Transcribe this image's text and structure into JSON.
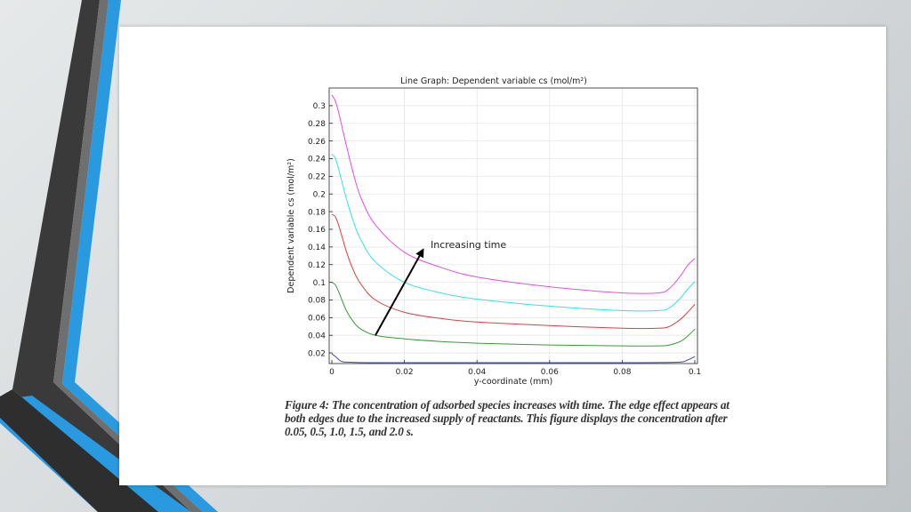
{
  "slide": {
    "caption": "Figure 4: The concentration of adsorbed species increases with time. The edge effect appears at both edges due to the increased supply of reactants. This figure displays the concentration after 0.05, 0.5, 1.0, 1.5, and 2.0 s.",
    "accent_color": "#2a9ae0",
    "dark_stripe_color": "#3a3a3a"
  },
  "chart_data": {
    "type": "line",
    "title": "Line Graph: Dependent variable cs (mol/m²)",
    "xlabel": "y-coordinate (mm)",
    "ylabel": "Dependent variable cs (mol/m²)",
    "xlim": [
      0,
      0.1
    ],
    "ylim": [
      0.008,
      0.32
    ],
    "x_ticks": [
      "0",
      "0.02",
      "0.04",
      "0.06",
      "0.08",
      "0.1"
    ],
    "y_ticks": [
      "0.02",
      "0.04",
      "0.06",
      "0.08",
      "0.1",
      "0.12",
      "0.14",
      "0.16",
      "0.18",
      "0.2",
      "0.22",
      "0.24",
      "0.26",
      "0.28",
      "0.3"
    ],
    "grid": true,
    "annotation": "Increasing time",
    "series": [
      {
        "color": "#3b4cc0",
        "x": [
          0,
          0.001,
          0.002,
          0.003,
          0.005,
          0.01,
          0.02,
          0.05,
          0.08,
          0.095,
          0.098,
          0.1
        ],
        "y": [
          0.019,
          0.016,
          0.012,
          0.01,
          0.0095,
          0.009,
          0.009,
          0.009,
          0.009,
          0.0095,
          0.012,
          0.016
        ]
      },
      {
        "color": "#3a9a3a",
        "x": [
          0,
          0.001,
          0.002,
          0.004,
          0.006,
          0.008,
          0.012,
          0.02,
          0.03,
          0.04,
          0.06,
          0.08,
          0.09,
          0.093,
          0.096,
          0.098,
          0.1
        ],
        "y": [
          0.1,
          0.097,
          0.088,
          0.068,
          0.055,
          0.047,
          0.04,
          0.036,
          0.033,
          0.031,
          0.029,
          0.028,
          0.028,
          0.029,
          0.033,
          0.039,
          0.047
        ]
      },
      {
        "color": "#d94040",
        "x": [
          0,
          0.001,
          0.002,
          0.004,
          0.006,
          0.008,
          0.012,
          0.02,
          0.03,
          0.04,
          0.06,
          0.08,
          0.09,
          0.093,
          0.096,
          0.098,
          0.1
        ],
        "y": [
          0.177,
          0.174,
          0.163,
          0.135,
          0.113,
          0.098,
          0.08,
          0.066,
          0.059,
          0.055,
          0.051,
          0.048,
          0.048,
          0.05,
          0.058,
          0.066,
          0.075
        ]
      },
      {
        "color": "#35e0e8",
        "x": [
          0,
          0.001,
          0.002,
          0.004,
          0.006,
          0.008,
          0.012,
          0.02,
          0.03,
          0.04,
          0.06,
          0.08,
          0.09,
          0.093,
          0.096,
          0.098,
          0.1
        ],
        "y": [
          0.245,
          0.24,
          0.226,
          0.195,
          0.168,
          0.148,
          0.123,
          0.1,
          0.088,
          0.081,
          0.073,
          0.068,
          0.068,
          0.071,
          0.082,
          0.092,
          0.101
        ]
      },
      {
        "color": "#e050e0",
        "x": [
          0,
          0.001,
          0.002,
          0.004,
          0.006,
          0.008,
          0.012,
          0.02,
          0.03,
          0.04,
          0.06,
          0.08,
          0.09,
          0.093,
          0.096,
          0.098,
          0.1
        ],
        "y": [
          0.312,
          0.305,
          0.29,
          0.255,
          0.222,
          0.196,
          0.165,
          0.134,
          0.117,
          0.106,
          0.095,
          0.088,
          0.088,
          0.093,
          0.107,
          0.119,
          0.127
        ]
      }
    ],
    "arrow": {
      "from": [
        0.012,
        0.04
      ],
      "to": [
        0.025,
        0.136
      ]
    }
  }
}
